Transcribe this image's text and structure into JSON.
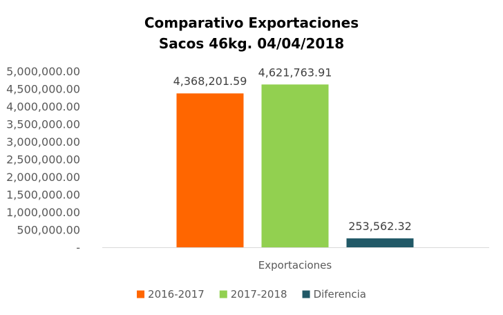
{
  "chart_data": {
    "type": "bar",
    "title": "Comparativo  Exportaciones",
    "subtitle": "Sacos 46kg. 04/04/2018",
    "categories": [
      "Exportaciones"
    ],
    "series": [
      {
        "name": "2016-2017",
        "values": [
          4368201.59
        ],
        "label": "4,368,201.59",
        "color": "#FF6600"
      },
      {
        "name": "2017-2018",
        "values": [
          4621763.91
        ],
        "label": "4,621,763.91",
        "color": "#92D050"
      },
      {
        "name": "Diferencia",
        "values": [
          253562.32
        ],
        "label": "253,562.32",
        "color": "#215967"
      }
    ],
    "ylim": [
      0,
      5000000
    ],
    "yticks": [
      {
        "value": 0,
        "label": "-"
      },
      {
        "value": 500000,
        "label": "500,000.00"
      },
      {
        "value": 1000000,
        "label": "1,000,000.00"
      },
      {
        "value": 1500000,
        "label": "1,500,000.00"
      },
      {
        "value": 2000000,
        "label": "2,000,000.00"
      },
      {
        "value": 2500000,
        "label": "2,500,000.00"
      },
      {
        "value": 3000000,
        "label": "3,000,000.00"
      },
      {
        "value": 3500000,
        "label": "3,500,000.00"
      },
      {
        "value": 4000000,
        "label": "4,000,000.00"
      },
      {
        "value": 4500000,
        "label": "4,500,000.00"
      },
      {
        "value": 5000000,
        "label": "5,000,000.00"
      }
    ],
    "grid": false,
    "legend_position": "bottom"
  }
}
